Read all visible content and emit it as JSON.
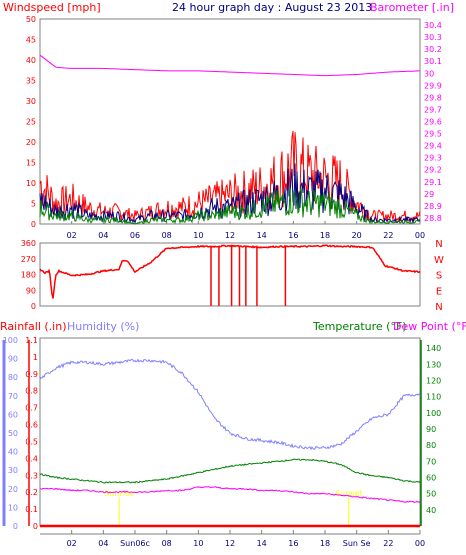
{
  "header": {
    "wind_title": "Windspeed [mph]",
    "main_title": "24 hour graph day : August 23 2013",
    "baro_title": "Barometer [.in]"
  },
  "colors": {
    "red": "#ff0000",
    "magenta": "#ff00ff",
    "navy": "#000080",
    "green": "#008000",
    "periwinkle": "#8080ff",
    "yellow": "#ffff00",
    "axis_gray": "#808080"
  },
  "chart_data": [
    {
      "type": "line",
      "title": "24 hour graph day : August 23 2013",
      "left_axis_label": "Windspeed [mph]",
      "right_axis_label": "Barometer [.in]",
      "x_tick_labels": [
        "02",
        "04",
        "06",
        "08",
        "10",
        "12",
        "14",
        "16",
        "18",
        "20",
        "22",
        "00"
      ],
      "y_left_ticks": [
        "0",
        "5",
        "10",
        "15",
        "20",
        "25",
        "30",
        "35",
        "40",
        "45",
        "50"
      ],
      "y_left_range": [
        0,
        50
      ],
      "y_right_ticks": [
        "28.8",
        "28.9",
        "29",
        "29.1",
        "29.2",
        "29.3",
        "29.4",
        "29.5",
        "29.6",
        "29.7",
        "29.8",
        "29.9",
        "30",
        "30.1",
        "30.2",
        "30.3",
        "30.4"
      ],
      "y_right_range": [
        28.75,
        30.45
      ],
      "grid": false,
      "series": [
        {
          "color": "#ff0000",
          "axis": "left",
          "hours": [
            0,
            1,
            2,
            3,
            4,
            5,
            6,
            7,
            8,
            9,
            10,
            11,
            12,
            13,
            14,
            15,
            16,
            17,
            18,
            19,
            20,
            21,
            22,
            23,
            24
          ],
          "values": [
            10,
            5,
            6,
            4,
            3,
            3,
            2,
            3,
            4,
            4,
            5,
            6,
            7,
            8,
            9,
            11,
            14,
            12,
            11,
            10,
            5,
            2,
            2,
            2,
            2
          ]
        },
        {
          "color": "#000080",
          "axis": "left",
          "hours": [
            0,
            1,
            2,
            3,
            4,
            5,
            6,
            7,
            8,
            9,
            10,
            11,
            12,
            13,
            14,
            15,
            16,
            17,
            18,
            19,
            20,
            21,
            22,
            23,
            24
          ],
          "values": [
            6,
            3,
            4,
            2,
            2,
            2,
            1,
            2,
            2,
            2,
            3,
            4,
            4,
            5,
            6,
            7,
            9,
            8,
            8,
            7,
            4,
            1,
            1,
            1,
            1
          ]
        },
        {
          "color": "#008000",
          "axis": "left",
          "hours": [
            0,
            1,
            2,
            3,
            4,
            5,
            6,
            7,
            8,
            9,
            10,
            11,
            12,
            13,
            14,
            15,
            16,
            17,
            18,
            19,
            20,
            21,
            22,
            23,
            24
          ],
          "values": [
            4,
            2,
            2,
            1,
            1,
            1,
            0,
            1,
            1,
            1,
            2,
            2,
            3,
            3,
            4,
            5,
            6,
            5,
            5,
            4,
            2,
            0.5,
            0.5,
            0.5,
            0.5
          ]
        },
        {
          "color": "#ff00ff",
          "axis": "right",
          "hours": [
            0,
            1,
            2,
            4,
            6,
            8,
            10,
            12,
            14,
            16,
            18,
            20,
            22,
            24
          ],
          "values": [
            30.15,
            30.05,
            30.04,
            30.04,
            30.03,
            30.02,
            30.02,
            30.01,
            30.0,
            29.99,
            29.98,
            29.99,
            30.01,
            30.02
          ]
        }
      ]
    },
    {
      "type": "line",
      "left_axis_label": "",
      "x_tick_labels": [],
      "y_left_ticks": [
        "0",
        "90",
        "180",
        "270",
        "360"
      ],
      "y_left_range": [
        0,
        360
      ],
      "compass_labels": [
        "N",
        "W",
        "S",
        "E",
        "N"
      ],
      "grid": false,
      "series": [
        {
          "color": "#ff0000",
          "name": "",
          "hours": [
            0,
            0.3,
            0.6,
            0.8,
            1.0,
            1.2,
            2,
            3,
            4,
            5,
            5.2,
            5.5,
            6,
            7,
            8,
            9,
            10,
            11,
            12,
            13,
            14,
            15,
            16,
            17,
            18,
            19,
            20,
            21,
            21.8,
            22,
            23,
            24
          ],
          "values": [
            210,
            190,
            200,
            30,
            180,
            200,
            175,
            180,
            200,
            210,
            260,
            260,
            195,
            250,
            330,
            335,
            340,
            340,
            345,
            340,
            335,
            340,
            340,
            340,
            345,
            340,
            340,
            335,
            230,
            225,
            200,
            195
          ]
        }
      ]
    },
    {
      "type": "line",
      "legend": [
        "Rainfall (.in)",
        "Humidity (%)",
        "Temperature (°F)",
        "Dew Point (°F)"
      ],
      "x_tick_labels": [
        "02",
        "04",
        "Sun06c",
        "08",
        "10",
        "12",
        "14",
        "16",
        "18",
        "Sun Se",
        "22",
        "00"
      ],
      "rain_ticks": [
        "0",
        "0.1",
        "0.2",
        "0.3",
        "0.4",
        "0.5",
        "0.6",
        "0.7",
        "0.8",
        "0.9",
        "1",
        "1.1"
      ],
      "rain_range": [
        0,
        1.1
      ],
      "humidity_ticks": [
        "0",
        "10",
        "20",
        "30",
        "40",
        "50",
        "60",
        "70",
        "80",
        "90",
        "100"
      ],
      "humidity_range": [
        0,
        100
      ],
      "temp_ticks": [
        "40",
        "50",
        "60",
        "70",
        "80",
        "90",
        "100",
        "110",
        "120",
        "130",
        "140"
      ],
      "temp_range": [
        30,
        145
      ],
      "grid": false,
      "series": [
        {
          "name": "Humidity (%)",
          "color": "#8080ff",
          "axis": "humidity",
          "hours": [
            0,
            1,
            2,
            3,
            4,
            5,
            6,
            7,
            8,
            9,
            10,
            11,
            12,
            13,
            14,
            15,
            16,
            17,
            18,
            19,
            20,
            21,
            22,
            23,
            24
          ],
          "values": [
            79,
            85,
            88,
            88,
            87,
            88,
            89,
            89,
            88,
            82,
            72,
            58,
            50,
            47,
            46,
            45,
            43,
            42,
            42,
            44,
            51,
            58,
            60,
            70,
            71
          ]
        },
        {
          "name": "Temperature (°F)",
          "color": "#008000",
          "axis": "temp",
          "hours": [
            0,
            1,
            2,
            3,
            4,
            5,
            6,
            7,
            8,
            9,
            10,
            11,
            12,
            13,
            14,
            15,
            16,
            17,
            18,
            19,
            20,
            21,
            22,
            23,
            24
          ],
          "values": [
            62,
            60,
            59,
            58,
            57,
            57,
            57,
            58,
            59,
            61,
            63,
            65,
            67,
            68,
            69,
            70,
            71,
            71,
            70,
            68,
            63,
            61,
            60,
            58,
            57
          ]
        },
        {
          "name": "Dew Point (°F)",
          "color": "#ff00ff",
          "axis": "temp",
          "hours": [
            0,
            1,
            2,
            3,
            4,
            5,
            6,
            7,
            8,
            9,
            10,
            11,
            12,
            13,
            14,
            15,
            16,
            17,
            18,
            19,
            20,
            21,
            22,
            23,
            24
          ],
          "values": [
            53,
            53,
            52,
            52,
            51,
            51,
            51,
            51,
            52,
            52,
            54,
            54,
            53,
            53,
            52,
            52,
            51,
            50,
            50,
            49,
            48,
            47,
            46,
            45,
            45
          ]
        },
        {
          "name": "Rainfall (.in)",
          "color": "#ff0000",
          "axis": "rain",
          "hours": [
            0,
            24
          ],
          "values": [
            0,
            0
          ]
        }
      ],
      "markers": [
        {
          "hour": 5.0,
          "label": "Sunrise"
        },
        {
          "hour": 19.5,
          "label": "Sunset"
        }
      ]
    }
  ]
}
